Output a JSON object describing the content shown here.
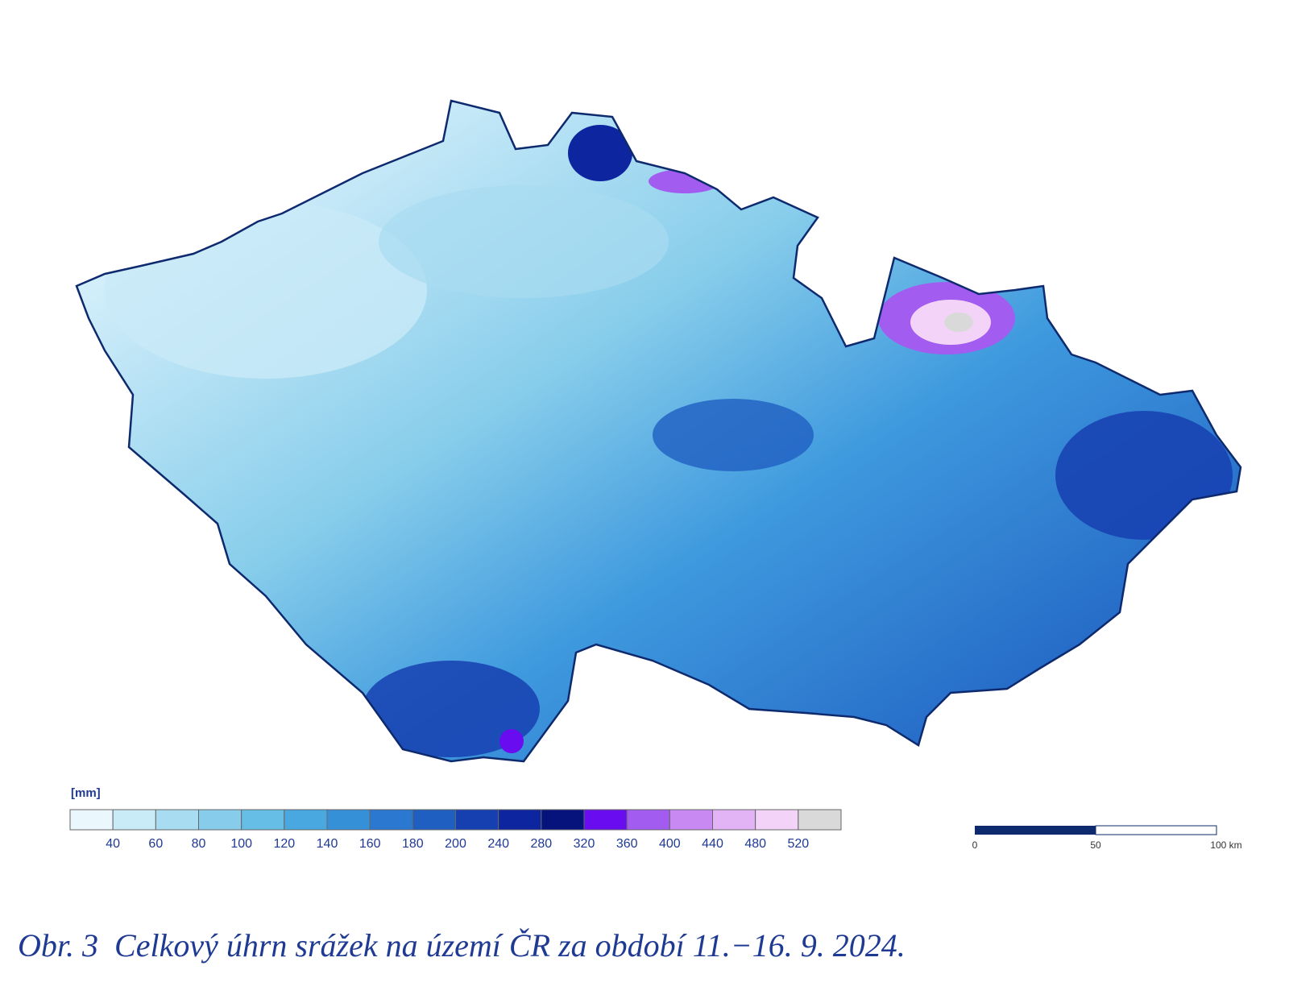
{
  "legend": {
    "unit": "[mm]",
    "colors": [
      "#eaf7fc",
      "#c9eaf7",
      "#a8dcf1",
      "#87cdeb",
      "#66bde6",
      "#48a8df",
      "#3590d8",
      "#2a78d0",
      "#1f5fc2",
      "#163fb0",
      "#0e25a0",
      "#06137c",
      "#6a0cf0",
      "#a35cf0",
      "#c88af2",
      "#e3b4f5",
      "#f3d4f8",
      "#d9d9d9"
    ],
    "labels": [
      "40",
      "60",
      "80",
      "100",
      "120",
      "140",
      "160",
      "180",
      "200",
      "240",
      "280",
      "320",
      "360",
      "400",
      "440",
      "480",
      "520"
    ]
  },
  "scale_bar": {
    "labels": [
      "0",
      "50",
      "100 km"
    ]
  },
  "caption": "Obr. 3  Celkový úhrn srážek na území ČR za období 11.−16. 9. 2024."
}
